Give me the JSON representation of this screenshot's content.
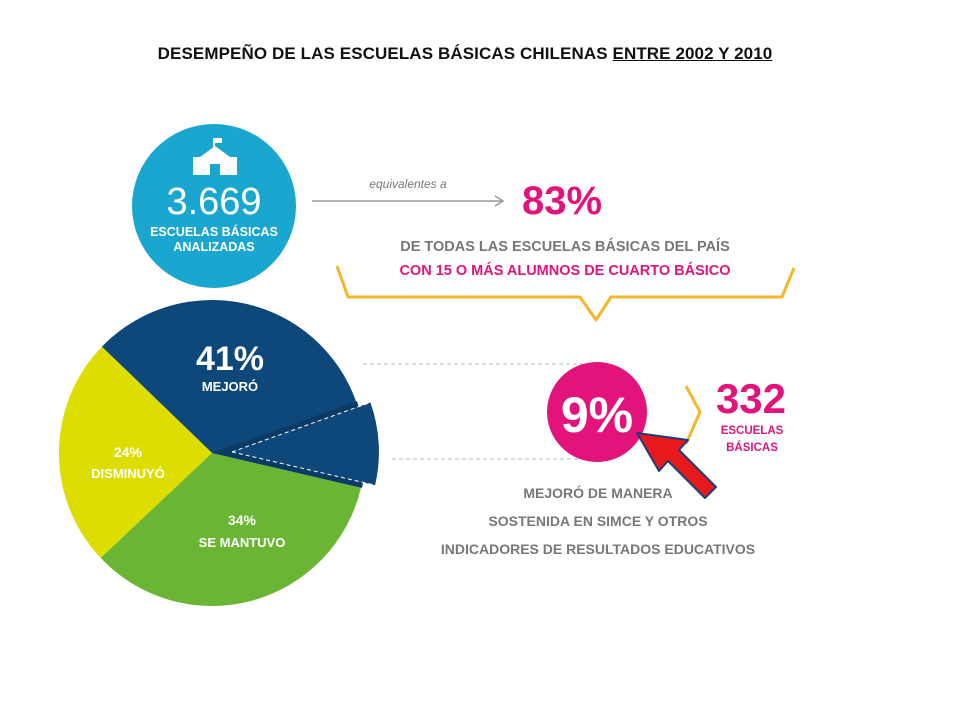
{
  "title": {
    "main": "DESEMPEÑO DE LAS ESCUELAS BÁSICAS CHILENAS ",
    "underlined": "ENTRE 2002 Y 2010"
  },
  "schools": {
    "count": "3.669",
    "label_line1": "ESCUELAS BÁSICAS",
    "label_line2": "ANALIZADAS",
    "icon": "school-icon"
  },
  "equivalence": {
    "arrow_label": "equivalentes a",
    "percent": "83%",
    "line1": "DE TODAS LAS ESCUELAS BÁSICAS DEL PAÍS",
    "line2": "CON 15 O MÁS ALUMNOS DE CUARTO BÁSICO"
  },
  "highlight": {
    "percent": "9%",
    "count": "332",
    "count_label_line1": "ESCUELAS",
    "count_label_line2": "BÁSICAS",
    "desc_line1": "MEJORÓ DE MANERA",
    "desc_line2": "SOSTENIDA EN SIMCE Y OTROS",
    "desc_line3": "INDICADORES DE RESULTADOS EDUCATIVOS"
  },
  "colors": {
    "cyan": "#1aa7cf",
    "magenta": "#e2137a",
    "navy": "#0e4779",
    "green": "#6ab533",
    "yellow": "#dedd00",
    "gold": "#f4b62b",
    "grey_text": "#777777",
    "red_arrow": "#e8191c"
  },
  "chart_data": {
    "type": "pie",
    "slices": [
      {
        "name": "MEJORÓ",
        "label": "41%",
        "value": 41,
        "color": "#0e4779"
      },
      {
        "name": "SE MANTUVO",
        "label": "34%",
        "value": 34,
        "color": "#6ab533"
      },
      {
        "name": "DISMINUYÓ",
        "label": "24%",
        "value": 24,
        "color": "#dedd00"
      }
    ],
    "exploded_subset": {
      "parent": "MEJORÓ",
      "label": "9%",
      "value": 9
    }
  }
}
